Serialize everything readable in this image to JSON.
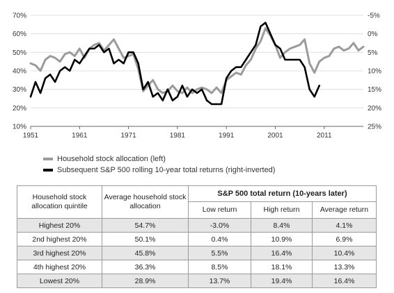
{
  "chart_data": {
    "type": "line",
    "x_ticks": [
      1951,
      1961,
      1971,
      1981,
      1991,
      2001,
      2011
    ],
    "left_axis": {
      "ticks": [
        "10%",
        "20%",
        "30%",
        "40%",
        "50%",
        "60%",
        "70%"
      ],
      "range": [
        10,
        70
      ]
    },
    "right_axis": {
      "ticks": [
        "-5%",
        "0%",
        "5%",
        "10%",
        "15%",
        "20%",
        "25%"
      ],
      "range": [
        -5,
        25
      ],
      "inverted": true
    },
    "xlim": [
      1951,
      2019
    ],
    "series": [
      {
        "name": "Household stock allocation (left)",
        "axis": "left",
        "color": "#9b9b9b",
        "points": [
          [
            1951,
            44
          ],
          [
            1952,
            43
          ],
          [
            1953,
            40
          ],
          [
            1954,
            46
          ],
          [
            1955,
            48
          ],
          [
            1956,
            47
          ],
          [
            1957,
            45
          ],
          [
            1958,
            49
          ],
          [
            1959,
            50
          ],
          [
            1960,
            48
          ],
          [
            1961,
            52
          ],
          [
            1962,
            47
          ],
          [
            1963,
            52
          ],
          [
            1964,
            54
          ],
          [
            1965,
            55
          ],
          [
            1966,
            51
          ],
          [
            1967,
            54
          ],
          [
            1968,
            57
          ],
          [
            1969,
            52
          ],
          [
            1970,
            47
          ],
          [
            1971,
            48
          ],
          [
            1972,
            49
          ],
          [
            1973,
            41
          ],
          [
            1974,
            29
          ],
          [
            1975,
            32
          ],
          [
            1976,
            35
          ],
          [
            1977,
            30
          ],
          [
            1978,
            28
          ],
          [
            1979,
            29
          ],
          [
            1980,
            32
          ],
          [
            1981,
            29
          ],
          [
            1982,
            28
          ],
          [
            1983,
            31
          ],
          [
            1984,
            28
          ],
          [
            1985,
            30
          ],
          [
            1986,
            31
          ],
          [
            1987,
            30
          ],
          [
            1988,
            28
          ],
          [
            1989,
            31
          ],
          [
            1990,
            28
          ],
          [
            1991,
            35
          ],
          [
            1992,
            37
          ],
          [
            1993,
            39
          ],
          [
            1994,
            38
          ],
          [
            1995,
            43
          ],
          [
            1996,
            46
          ],
          [
            1997,
            52
          ],
          [
            1998,
            56
          ],
          [
            1999,
            63
          ],
          [
            2000,
            59
          ],
          [
            2001,
            54
          ],
          [
            2002,
            47
          ],
          [
            2003,
            50
          ],
          [
            2004,
            52
          ],
          [
            2005,
            53
          ],
          [
            2006,
            54
          ],
          [
            2007,
            57
          ],
          [
            2008,
            44
          ],
          [
            2009,
            39
          ],
          [
            2010,
            45
          ],
          [
            2011,
            47
          ],
          [
            2012,
            48
          ],
          [
            2013,
            52
          ],
          [
            2014,
            53
          ],
          [
            2015,
            51
          ],
          [
            2016,
            52
          ],
          [
            2017,
            55
          ],
          [
            2018,
            51
          ],
          [
            2019,
            53
          ]
        ]
      },
      {
        "name": "Subsequent S&P 500 rolling 10-year total returns (right-inverted)",
        "axis": "right",
        "color": "#000000",
        "points": [
          [
            1951,
            17
          ],
          [
            1952,
            13
          ],
          [
            1953,
            16
          ],
          [
            1954,
            12
          ],
          [
            1955,
            11
          ],
          [
            1956,
            13
          ],
          [
            1957,
            10
          ],
          [
            1958,
            9
          ],
          [
            1959,
            10
          ],
          [
            1960,
            7
          ],
          [
            1961,
            8
          ],
          [
            1962,
            6
          ],
          [
            1963,
            4
          ],
          [
            1964,
            4
          ],
          [
            1965,
            3
          ],
          [
            1966,
            5
          ],
          [
            1967,
            4
          ],
          [
            1968,
            8
          ],
          [
            1969,
            7
          ],
          [
            1970,
            8
          ],
          [
            1971,
            5
          ],
          [
            1972,
            5
          ],
          [
            1973,
            8
          ],
          [
            1974,
            15
          ],
          [
            1975,
            13
          ],
          [
            1976,
            17
          ],
          [
            1977,
            16
          ],
          [
            1978,
            18
          ],
          [
            1979,
            15
          ],
          [
            1980,
            18
          ],
          [
            1981,
            17
          ],
          [
            1982,
            14
          ],
          [
            1983,
            17
          ],
          [
            1984,
            15
          ],
          [
            1985,
            16
          ],
          [
            1986,
            15
          ],
          [
            1987,
            18
          ],
          [
            1988,
            19
          ],
          [
            1989,
            19
          ],
          [
            1990,
            19
          ],
          [
            1991,
            12
          ],
          [
            1992,
            10
          ],
          [
            1993,
            9
          ],
          [
            1994,
            9
          ],
          [
            1995,
            7
          ],
          [
            1996,
            5
          ],
          [
            1997,
            3
          ],
          [
            1998,
            -2
          ],
          [
            1999,
            -3
          ],
          [
            2000,
            0
          ],
          [
            2001,
            3
          ],
          [
            2002,
            4
          ],
          [
            2003,
            7
          ],
          [
            2004,
            7
          ],
          [
            2005,
            7
          ],
          [
            2006,
            7
          ],
          [
            2007,
            9
          ],
          [
            2008,
            15
          ],
          [
            2009,
            17
          ],
          [
            2010,
            14
          ]
        ]
      }
    ]
  },
  "legend": [
    {
      "label": "Household stock allocation (left)",
      "color": "#9b9b9b"
    },
    {
      "label": "Subsequent S&P 500 rolling 10-year total returns (right-inverted)",
      "color": "#000000"
    }
  ],
  "table": {
    "header": {
      "quintile": "Household stock allocation quintile",
      "average": "Average household stock allocation",
      "group": "S&P 500 total return (10-years later)",
      "low": "Low return",
      "high": "High return",
      "avg_return": "Average return"
    },
    "rows": [
      {
        "quintile": "Highest 20%",
        "avg_alloc": "54.7%",
        "low": "-3.0%",
        "high": "8.4%",
        "avg": "4.1%"
      },
      {
        "quintile": "2nd highest 20%",
        "avg_alloc": "50.1%",
        "low": "0.4%",
        "high": "10.9%",
        "avg": "6.9%"
      },
      {
        "quintile": "3rd highest 20%",
        "avg_alloc": "45.8%",
        "low": "5.5%",
        "high": "16.4%",
        "avg": "10.4%"
      },
      {
        "quintile": "4th highest 20%",
        "avg_alloc": "36.3%",
        "low": "8.5%",
        "high": "18.1%",
        "avg": "13.3%"
      },
      {
        "quintile": "Lowest 20%",
        "avg_alloc": "28.9%",
        "low": "13.7%",
        "high": "19.4%",
        "avg": "16.4%"
      }
    ]
  }
}
